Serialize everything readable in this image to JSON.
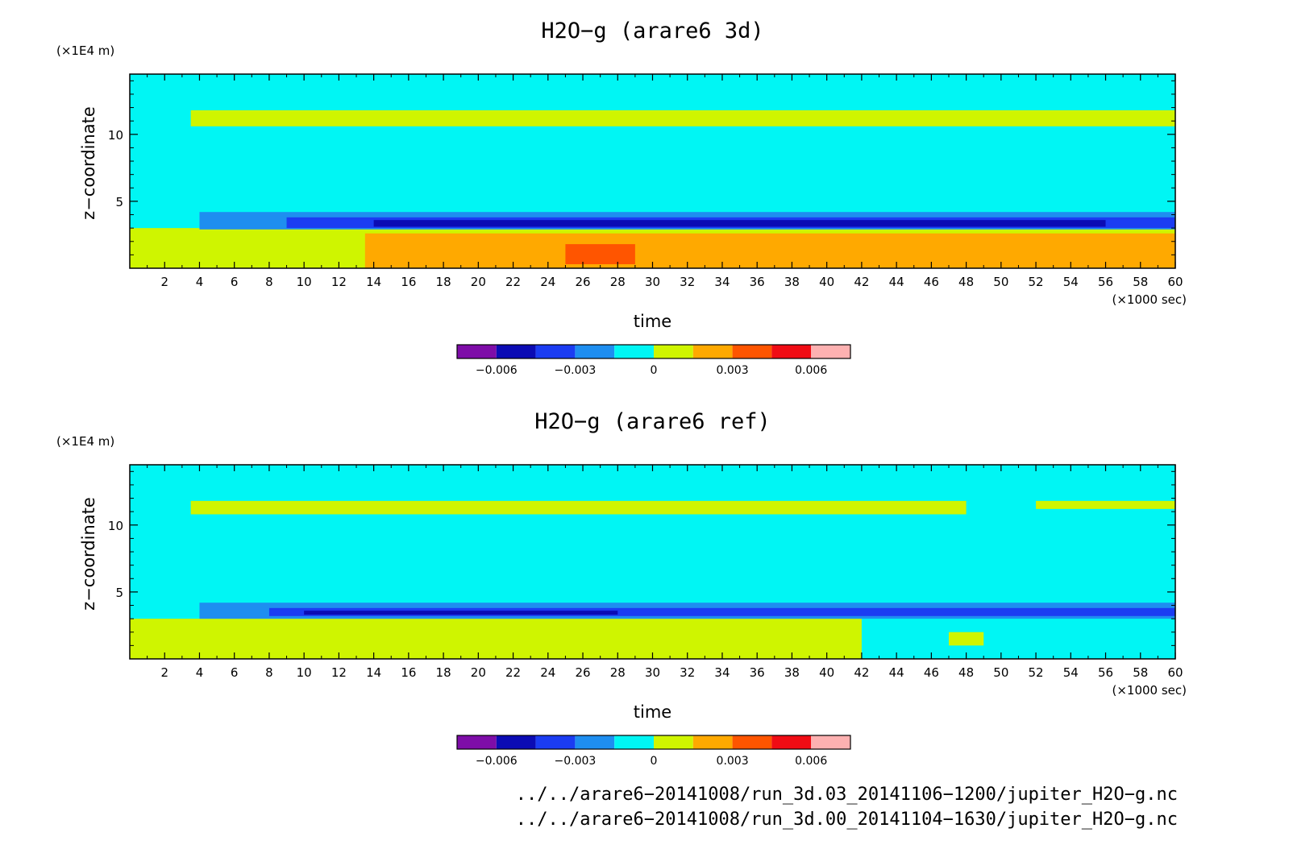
{
  "chart_data": [
    {
      "type": "heatmap",
      "title": "H2O−g (arare6 3d)",
      "xlabel": "time",
      "x_unit": "(×1000 sec)",
      "ylabel": "z−coordinate",
      "y_unit": "(×1E4 m)",
      "xlim": [
        0,
        60
      ],
      "ylim": [
        0,
        14.5
      ],
      "x_ticks": [
        2,
        4,
        6,
        8,
        10,
        12,
        14,
        16,
        18,
        20,
        22,
        24,
        26,
        28,
        30,
        32,
        34,
        36,
        38,
        40,
        42,
        44,
        46,
        48,
        50,
        52,
        54,
        56,
        58,
        60
      ],
      "y_ticks": [
        5,
        10
      ],
      "y_tick_labels": [
        "5",
        "10"
      ],
      "bands": [
        {
          "x0": 0,
          "x1": 60,
          "y0": 0,
          "y1": 14.5,
          "level": 0
        },
        {
          "x0": 3.5,
          "x1": 60,
          "y0": 10.6,
          "y1": 11.8,
          "level": 1
        },
        {
          "x0": 0,
          "x1": 60,
          "y0": 0,
          "y1": 3.0,
          "level": 1
        },
        {
          "x0": 13.5,
          "x1": 60,
          "y0": 0,
          "y1": 2.6,
          "level": 2
        },
        {
          "x0": 25,
          "x1": 29,
          "y0": 0.3,
          "y1": 1.8,
          "level": 3
        },
        {
          "x0": 4,
          "x1": 60,
          "y0": 2.9,
          "y1": 4.2,
          "level": -1
        },
        {
          "x0": 9,
          "x1": 60,
          "y0": 3.0,
          "y1": 3.8,
          "level": -2
        },
        {
          "x0": 14,
          "x1": 56,
          "y0": 3.1,
          "y1": 3.6,
          "level": -3
        }
      ],
      "colorbar": {
        "colors": [
          "#7e0da8",
          "#0b0bb4",
          "#1b3cf2",
          "#1e8ef0",
          "#00f6f4",
          "#cff500",
          "#ffa900",
          "#ff5500",
          "#f00c14",
          "#fdb1b1"
        ],
        "tick_values": [
          -0.006,
          -0.003,
          0,
          0.003,
          0.006
        ],
        "tick_labels": [
          "−0.006",
          "−0.003",
          "0",
          "0.003",
          "0.006"
        ]
      }
    },
    {
      "type": "heatmap",
      "title": "H2O−g (arare6 ref)",
      "xlabel": "time",
      "x_unit": "(×1000 sec)",
      "ylabel": "z−coordinate",
      "y_unit": "(×1E4 m)",
      "xlim": [
        0,
        60
      ],
      "ylim": [
        0,
        14.5
      ],
      "x_ticks": [
        2,
        4,
        6,
        8,
        10,
        12,
        14,
        16,
        18,
        20,
        22,
        24,
        26,
        28,
        30,
        32,
        34,
        36,
        38,
        40,
        42,
        44,
        46,
        48,
        50,
        52,
        54,
        56,
        58,
        60
      ],
      "y_ticks": [
        5,
        10
      ],
      "y_tick_labels": [
        "5",
        "10"
      ],
      "bands": [
        {
          "x0": 0,
          "x1": 60,
          "y0": 0,
          "y1": 14.5,
          "level": 0
        },
        {
          "x0": 3.5,
          "x1": 48,
          "y0": 10.8,
          "y1": 11.8,
          "level": 1
        },
        {
          "x0": 52,
          "x1": 60,
          "y0": 11.2,
          "y1": 11.8,
          "level": 1
        },
        {
          "x0": 0,
          "x1": 42,
          "y0": 0,
          "y1": 3.0,
          "level": 1
        },
        {
          "x0": 47,
          "x1": 49,
          "y0": 1.0,
          "y1": 2.0,
          "level": 1
        },
        {
          "x0": 4,
          "x1": 60,
          "y0": 3.0,
          "y1": 4.2,
          "level": -1
        },
        {
          "x0": 8,
          "x1": 60,
          "y0": 3.2,
          "y1": 3.8,
          "level": -2
        },
        {
          "x0": 10,
          "x1": 28,
          "y0": 3.3,
          "y1": 3.6,
          "level": -3
        }
      ],
      "colorbar": {
        "colors": [
          "#7e0da8",
          "#0b0bb4",
          "#1b3cf2",
          "#1e8ef0",
          "#00f6f4",
          "#cff500",
          "#ffa900",
          "#ff5500",
          "#f00c14",
          "#fdb1b1"
        ],
        "tick_values": [
          -0.006,
          -0.003,
          0,
          0.003,
          0.006
        ],
        "tick_labels": [
          "−0.006",
          "−0.003",
          "0",
          "0.003",
          "0.006"
        ]
      }
    }
  ],
  "footer": {
    "line1": "../../arare6−20141008/run_3d.03_20141106−1200/jupiter_H2O−g.nc",
    "line2": "../../arare6−20141008/run_3d.00_20141104−1630/jupiter_H2O−g.nc"
  }
}
